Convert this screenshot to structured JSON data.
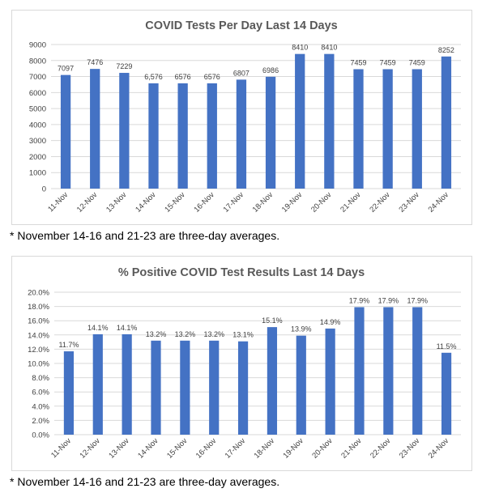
{
  "bar_color": "#4472c4",
  "grid_color": "#d9d9d9",
  "charts": [
    {
      "note": "* November 14-16 and 21-23 are three-day averages."
    },
    {
      "note": "* November 14-16 and 21-23 are three-day averages."
    }
  ],
  "chart_data": [
    {
      "type": "bar",
      "title": "COVID Tests Per Day Last 14 Days",
      "xlabel": "",
      "ylabel": "",
      "categories": [
        "11-Nov",
        "12-Nov",
        "13-Nov",
        "14-Nov",
        "15-Nov",
        "16-Nov",
        "17-Nov",
        "18-Nov",
        "19-Nov",
        "20-Nov",
        "21-Nov",
        "22-Nov",
        "23-Nov",
        "24-Nov"
      ],
      "values": [
        7097,
        7476,
        7229,
        6576,
        6576,
        6576,
        6807,
        6986,
        8410,
        8410,
        7459,
        7459,
        7459,
        8252
      ],
      "data_labels": [
        "7097",
        "7476",
        "7229",
        "6,576",
        "6576",
        "6576",
        "6807",
        "6986",
        "8410",
        "8410",
        "7459",
        "7459",
        "7459",
        "8252"
      ],
      "ylim": [
        0,
        9000
      ],
      "yticks": [
        0,
        1000,
        2000,
        3000,
        4000,
        5000,
        6000,
        7000,
        8000,
        9000
      ],
      "ytick_labels": [
        "0",
        "1000",
        "2000",
        "3000",
        "4000",
        "5000",
        "6000",
        "7000",
        "8000",
        "9000"
      ],
      "grid": true,
      "legend": "none"
    },
    {
      "type": "bar",
      "title": "% Positive COVID Test Results Last 14 Days",
      "xlabel": "",
      "ylabel": "",
      "categories": [
        "11-Nov",
        "12-Nov",
        "13-Nov",
        "14-Nov",
        "15-Nov",
        "16-Nov",
        "17-Nov",
        "18-Nov",
        "19-Nov",
        "20-Nov",
        "21-Nov",
        "22-Nov",
        "23-Nov",
        "24-Nov"
      ],
      "values": [
        11.7,
        14.1,
        14.1,
        13.2,
        13.2,
        13.2,
        13.1,
        15.1,
        13.9,
        14.9,
        17.9,
        17.9,
        17.9,
        11.5
      ],
      "data_labels": [
        "11.7%",
        "14.1%",
        "14.1%",
        "13.2%",
        "13.2%",
        "13.2%",
        "13.1%",
        "15.1%",
        "13.9%",
        "14.9%",
        "17.9%",
        "17.9%",
        "17.9%",
        "11.5%"
      ],
      "ylim": [
        0,
        20
      ],
      "yticks": [
        0,
        2,
        4,
        6,
        8,
        10,
        12,
        14,
        16,
        18,
        20
      ],
      "ytick_labels": [
        "0.0%",
        "2.0%",
        "4.0%",
        "6.0%",
        "8.0%",
        "10.0%",
        "12.0%",
        "14.0%",
        "16.0%",
        "18.0%",
        "20.0%"
      ],
      "grid": true,
      "legend": "none"
    }
  ]
}
